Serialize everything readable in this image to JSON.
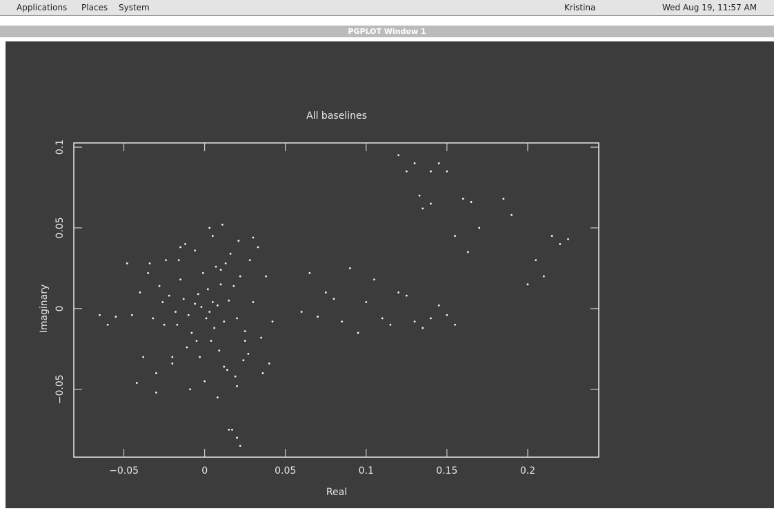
{
  "panel": {
    "menus": [
      "Applications",
      "Places",
      "System"
    ],
    "user": "Kristina",
    "clock": "Wed Aug 19, 11:57 AM"
  },
  "window": {
    "title": "PGPLOT Window 1"
  },
  "chart_data": {
    "type": "scatter",
    "title": "All baselines",
    "x_label": "Real",
    "y_label": "Imaginary",
    "color": "#f2f2f2",
    "xlim": [
      -0.081,
      0.244
    ],
    "ylim": [
      -0.092,
      0.1026
    ],
    "xticks": [
      {
        "value": -0.05,
        "label": "−0.05"
      },
      0,
      0.05,
      0.1,
      0.15,
      0.2
    ],
    "yticks": [
      {
        "value": -0.05,
        "label": "−0.05"
      },
      0,
      0.05,
      0.1
    ],
    "x": [
      -0.002,
      0.003,
      0.005,
      -0.006,
      0.001,
      0.008,
      -0.01,
      0.012,
      -0.004,
      0.002,
      0.006,
      -0.013,
      0.015,
      -0.008,
      0.01,
      -0.018,
      0.02,
      -0.015,
      0.004,
      -0.001,
      0.018,
      -0.022,
      0.025,
      -0.025,
      0.007,
      -0.011,
      0.013,
      -0.003,
      0.009,
      -0.016,
      0.022,
      -0.028,
      0.03,
      -0.032,
      0.012,
      -0.02,
      0.027,
      -0.006,
      0.016,
      -0.035,
      0.035,
      -0.04,
      0.038,
      -0.045,
      0.028,
      -0.03,
      0.0,
      0.005,
      -0.012,
      0.019,
      -0.024,
      0.011,
      0.033,
      -0.038,
      0.024,
      -0.009,
      0.014,
      -0.017,
      0.003,
      -0.026,
      0.03,
      -0.005,
      0.021,
      -0.034,
      0.008,
      -0.048,
      0.042,
      -0.055,
      -0.065,
      -0.06,
      0.036,
      -0.042,
      0.04,
      -0.03,
      0.015,
      0.01,
      -0.015,
      0.02,
      0.025,
      -0.02,
      0.065,
      0.07,
      0.075,
      0.08,
      0.085,
      0.09,
      0.095,
      0.06,
      0.1,
      0.105,
      0.11,
      0.115,
      0.12,
      0.125,
      0.13,
      0.135,
      0.14,
      0.145,
      0.15,
      0.155,
      0.12,
      0.125,
      0.13,
      0.135,
      0.14,
      0.145,
      0.15,
      0.133,
      0.14,
      0.16,
      0.165,
      0.17,
      0.155,
      0.163,
      0.185,
      0.19,
      0.2,
      0.21,
      0.215,
      0.22,
      0.225,
      0.205,
      0.02,
      0.022,
      0.017
    ],
    "y": [
      0.001,
      -0.002,
      0.004,
      0.003,
      -0.006,
      0.002,
      -0.004,
      -0.008,
      0.009,
      0.012,
      -0.012,
      0.006,
      0.005,
      -0.015,
      0.015,
      -0.002,
      -0.006,
      0.018,
      -0.02,
      0.022,
      0.014,
      0.008,
      -0.014,
      -0.01,
      0.026,
      -0.024,
      0.028,
      -0.03,
      -0.026,
      0.03,
      0.02,
      0.014,
      0.004,
      -0.006,
      -0.036,
      -0.034,
      -0.028,
      0.036,
      0.034,
      0.022,
      -0.018,
      0.01,
      0.02,
      -0.004,
      0.03,
      -0.04,
      -0.045,
      0.045,
      0.04,
      -0.042,
      0.03,
      0.052,
      0.038,
      -0.03,
      -0.032,
      -0.05,
      -0.038,
      -0.01,
      0.05,
      0.004,
      0.044,
      -0.02,
      0.042,
      0.028,
      -0.055,
      0.028,
      -0.008,
      -0.005,
      -0.004,
      -0.01,
      -0.04,
      -0.046,
      -0.034,
      -0.052,
      -0.075,
      0.024,
      0.038,
      -0.048,
      -0.02,
      -0.03,
      0.022,
      -0.005,
      0.01,
      0.006,
      -0.008,
      0.025,
      -0.015,
      -0.002,
      0.004,
      0.018,
      -0.006,
      -0.01,
      0.01,
      0.008,
      -0.008,
      -0.012,
      -0.006,
      0.002,
      -0.004,
      -0.01,
      0.095,
      0.085,
      0.09,
      0.062,
      0.085,
      0.09,
      0.085,
      0.07,
      0.065,
      0.068,
      0.066,
      0.05,
      0.045,
      0.035,
      0.068,
      0.058,
      0.015,
      0.02,
      0.045,
      0.04,
      0.043,
      0.03,
      -0.08,
      -0.085,
      -0.075
    ]
  }
}
